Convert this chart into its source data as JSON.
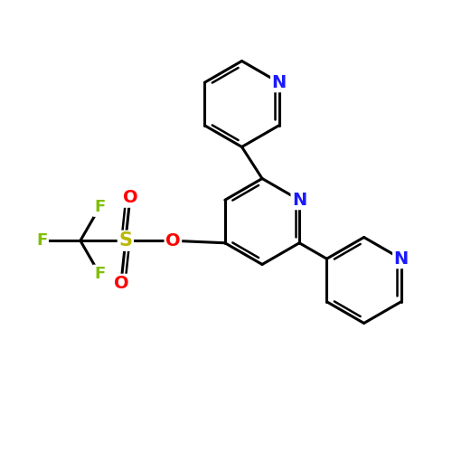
{
  "background_color": "#ffffff",
  "bond_color": "#000000",
  "bond_width": 2.2,
  "atom_colors": {
    "N": "#1a1aff",
    "O": "#ff0000",
    "S": "#b8b800",
    "F": "#7fbf00",
    "C": "#000000"
  },
  "font_size_atom": 13,
  "fig_size": [
    5.0,
    5.0
  ],
  "dpi": 100
}
